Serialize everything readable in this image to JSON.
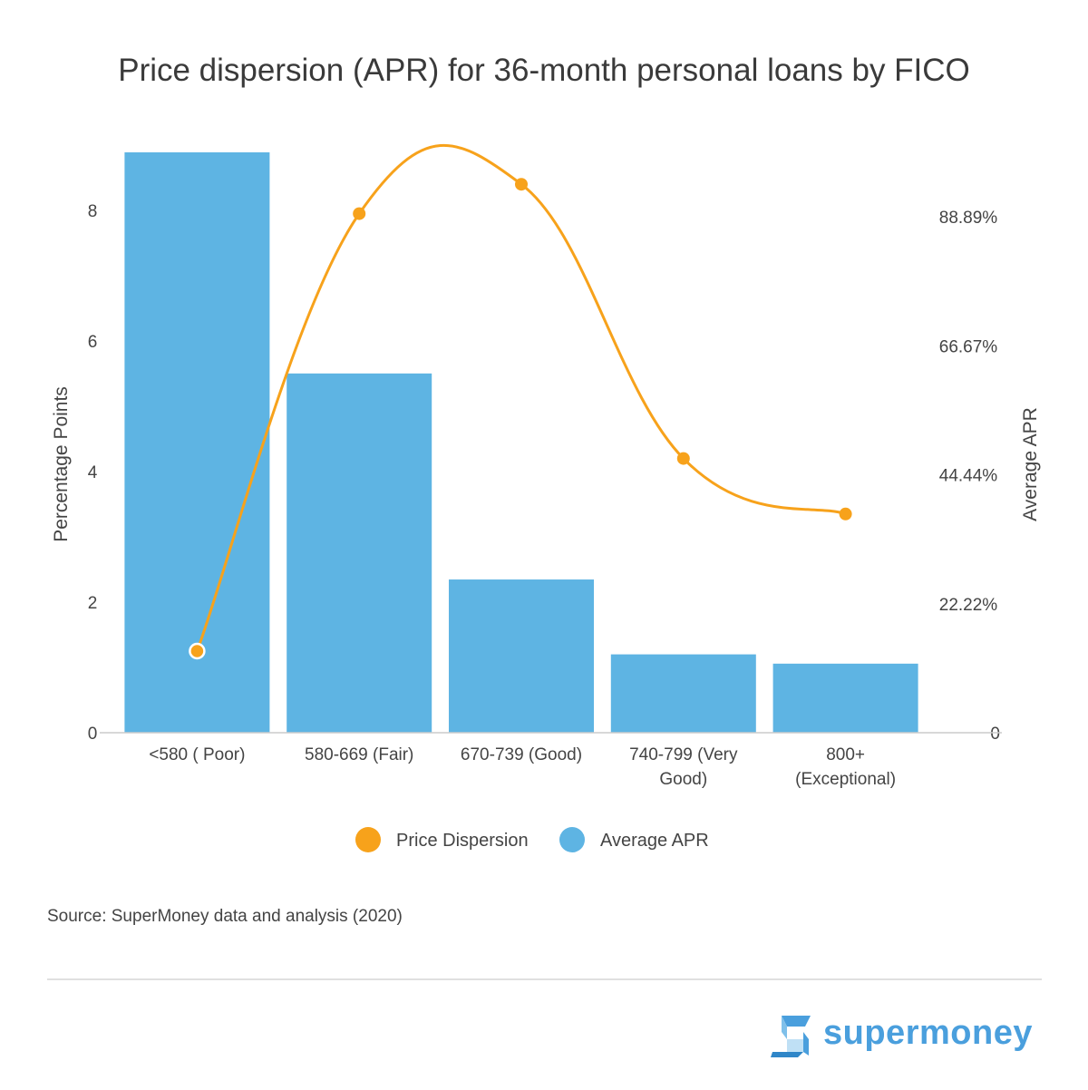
{
  "chart_data": {
    "type": "bar",
    "title": "Price dispersion (APR) for 36-month personal loans by FICO",
    "categories": [
      "<580 ( Poor)",
      "580-669 (Fair)",
      "670-739 (Good)",
      "740-799 (Very Good)",
      "800+ (Exceptional)"
    ],
    "category_lines": [
      [
        "<580 ( Poor)"
      ],
      [
        "580-669 (Fair)"
      ],
      [
        "670-739 (Good)"
      ],
      [
        "740-799 (Very",
        "Good)"
      ],
      [
        "800+",
        "(Exceptional)"
      ]
    ],
    "series": [
      {
        "name": "Average APR",
        "type": "bar",
        "axis": "right",
        "color": "#5eb4e3",
        "values": [
          100.0,
          61.9,
          26.4,
          13.5,
          11.9
        ]
      },
      {
        "name": "Price Dispersion",
        "type": "line",
        "axis": "left",
        "color": "#f7a21b",
        "values": [
          1.25,
          7.95,
          8.4,
          4.2,
          3.35
        ]
      }
    ],
    "left_axis": {
      "label": "Percentage Points",
      "min": 0,
      "max": 9,
      "ticks": [
        "0",
        "2",
        "4",
        "6",
        "8"
      ],
      "tick_values": [
        0,
        2,
        4,
        6,
        8
      ]
    },
    "right_axis": {
      "label": "Average APR",
      "min": 0,
      "max": 101.25,
      "ticks": [
        "0",
        "22.22%",
        "44.44%",
        "66.67%",
        "88.89%"
      ],
      "tick_values": [
        0,
        22.22,
        44.44,
        66.67,
        88.89
      ]
    },
    "legend": {
      "placement": "bottom-center",
      "entries": [
        {
          "label": "Price Dispersion",
          "color": "#f7a21b"
        },
        {
          "label": "Average APR",
          "color": "#5eb4e3"
        }
      ]
    },
    "grid": false
  },
  "footer": {
    "source": "Source: SuperMoney data and analysis (2020)",
    "brand": "supermoney"
  }
}
